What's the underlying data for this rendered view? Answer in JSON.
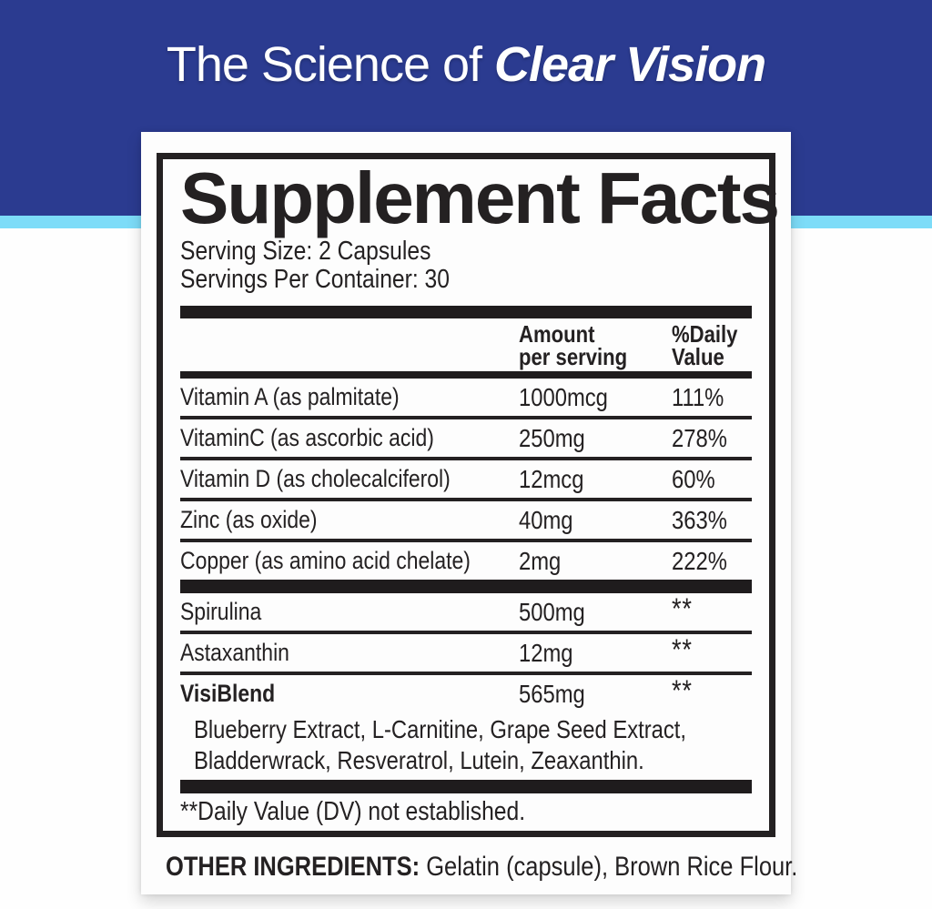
{
  "colors": {
    "banner_blue": "#2B3B90",
    "stripe_cyan": "#7DDCF8",
    "ink": "#242122"
  },
  "banner": {
    "title_prefix": "The Science of ",
    "title_emphasis": "Clear Vision"
  },
  "supplement_facts": {
    "title": "Supplement Facts",
    "serving_size": "Serving Size: 2 Capsules",
    "servings_per_container": "Servings Per Container: 30",
    "column_headers": {
      "amount": [
        "Amount",
        "per serving"
      ],
      "daily_value": [
        "%Daily",
        "Value"
      ]
    },
    "nutrients": [
      {
        "name": "Vitamin A (as palmitate)",
        "amount": "1000mcg",
        "daily_value": "111%"
      },
      {
        "name": "VitaminC (as ascorbic acid)",
        "amount": "250mg",
        "daily_value": "278%"
      },
      {
        "name": "Vitamin D (as cholecalciferol)",
        "amount": "12mcg",
        "daily_value": "60%"
      },
      {
        "name": "Zinc (as oxide)",
        "amount": "40mg",
        "daily_value": "363%"
      },
      {
        "name": "Copper (as amino acid chelate)",
        "amount": "2mg",
        "daily_value": "222%"
      }
    ],
    "blend": [
      {
        "name": "Spirulina",
        "amount": "500mg",
        "daily_value": "**"
      },
      {
        "name": "Astaxanthin",
        "amount": "12mg",
        "daily_value": "**"
      },
      {
        "name": "VisiBlend",
        "amount": "565mg",
        "daily_value": "**"
      }
    ],
    "blend_ingredients_line1": "Blueberry Extract, L-Carnitine, Grape Seed Extract,",
    "blend_ingredients_line2": "Bladderwrack, Resveratrol, Lutein, Zeaxanthin.",
    "footnote": "**Daily Value (DV) not established.",
    "other_ingredients": {
      "label": "OTHER INGREDIENTS:",
      "value": " Gelatin (capsule), Brown Rice Flour."
    }
  }
}
